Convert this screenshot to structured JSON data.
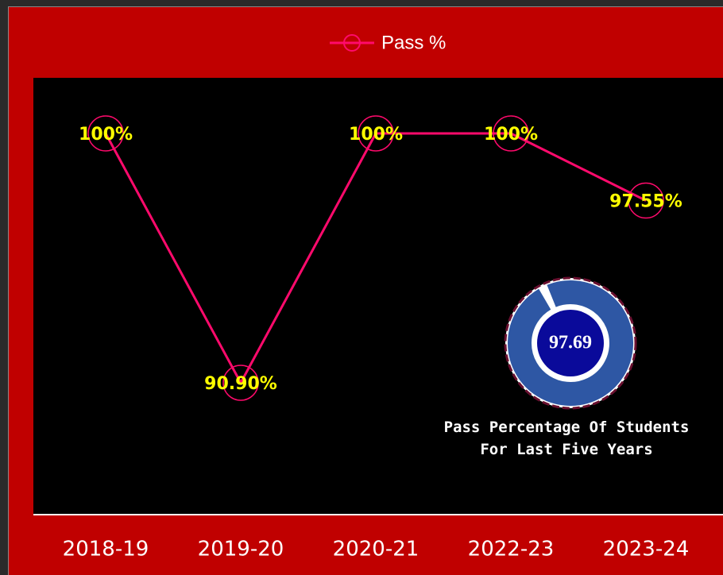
{
  "chart_data": [
    {
      "type": "line",
      "categories": [
        "2018-19",
        "2019-20",
        "2020-21",
        "2022-23",
        "2023-24"
      ],
      "series": [
        {
          "name": "Pass %",
          "color": "#ff0a6c",
          "values": [
            100,
            90.9,
            100,
            100,
            97.55
          ],
          "value_labels": [
            "100%",
            "90.90%",
            "100%",
            "100%",
            "97.55%"
          ]
        }
      ]
    },
    {
      "type": "gauge",
      "value": 97.69,
      "title": "Pass Percentage Of Students For Last Five Years"
    }
  ]
}
